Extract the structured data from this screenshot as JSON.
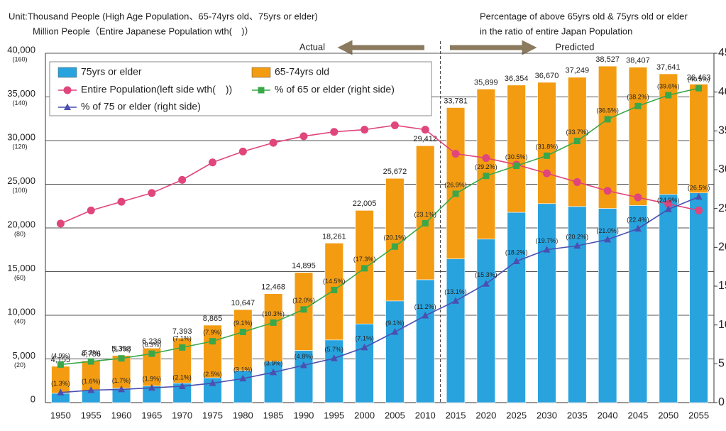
{
  "chart_data": {
    "type": "combo",
    "header_left": [
      "Unit:Thousand People (High Age Population、65-74yrs old、75yrs or elder)",
      "Million People（Entire Japanese Population wth(　)）"
    ],
    "header_right": [
      "Percentage of above 65yrs old & 75yrs old or elder",
      "in the ratio of entire Japan Population"
    ],
    "annotations": {
      "actual": "Actual",
      "predicted": "Predicted"
    },
    "categories": [
      "1950",
      "1955",
      "1960",
      "1965",
      "1970",
      "1975",
      "1980",
      "1985",
      "1990",
      "1995",
      "2000",
      "2005",
      "2010",
      "2015",
      "2020",
      "2025",
      "2030",
      "2035",
      "2040",
      "2045",
      "2050",
      "2055"
    ],
    "total_labels": [
      "4,155",
      "4,786",
      "5,398",
      "6,236",
      "7,393",
      "8,865",
      "10,647",
      "12,468",
      "14,895",
      "18,261",
      "22,005",
      "25,672",
      "29,412",
      "33,781",
      "35,899",
      "36,354",
      "36,670",
      "37,249",
      "38,527",
      "38,407",
      "37,641",
      "36,463"
    ],
    "series": [
      {
        "name": "75yrs or elder",
        "type": "bar",
        "color": "#29a3de",
        "values": [
          1069,
          1388,
          1637,
          1894,
          2237,
          2841,
          3660,
          4712,
          5973,
          7170,
          9008,
          11639,
          14072,
          16458,
          18719,
          21785,
          22784,
          22454,
          22230,
          22567,
          23846,
          24010
        ]
      },
      {
        "name": "65-74yrs old",
        "type": "bar",
        "color": "#f39c12",
        "values": [
          3086,
          3398,
          3761,
          4342,
          5156,
          6024,
          6987,
          7756,
          8922,
          11091,
          12997,
          14033,
          15340,
          17323,
          17180,
          14569,
          13886,
          14795,
          16297,
          15840,
          13795,
          12453
        ]
      },
      {
        "name": "Entire Population(left side wth(　))",
        "type": "line",
        "marker": "circle",
        "color": "#e0457b",
        "axis": "y3",
        "values": [
          82,
          88,
          92,
          96,
          102,
          110,
          115,
          119,
          122,
          124,
          125,
          127,
          125,
          114,
          112,
          109,
          105,
          101,
          97,
          94,
          91,
          88
        ]
      },
      {
        "name": "% of 65 or elder (right side)",
        "type": "line",
        "marker": "square",
        "color": "#3aa84a",
        "axis": "y2",
        "values": [
          4.9,
          5.3,
          5.7,
          6.3,
          7.1,
          7.9,
          9.1,
          10.3,
          12.0,
          14.5,
          17.3,
          20.1,
          23.1,
          26.9,
          29.2,
          30.5,
          31.8,
          33.7,
          36.5,
          38.2,
          39.6,
          40.5
        ],
        "value_labels": [
          "(4.9%)",
          "(5.3%)",
          "(5.7%)",
          "(6.3%)",
          "(7.1%)",
          "(7.9%)",
          "(9.1%)",
          "(10.3%)",
          "(12.0%)",
          "(14.5%)",
          "(17.3%)",
          "(20.1%)",
          "(23.1%)",
          "(26.9%)",
          "(29.2%)",
          "(30.5%)",
          "(31.8%)",
          "(33.7%)",
          "(36.5%)",
          "(38.2%)",
          "(39.6%)",
          "(40.5%)"
        ]
      },
      {
        "name": "% of 75 or elder (right side)",
        "type": "line",
        "marker": "triangle",
        "color": "#4a4fb0",
        "axis": "y2",
        "values": [
          1.3,
          1.6,
          1.7,
          1.9,
          2.1,
          2.5,
          3.1,
          3.9,
          4.8,
          5.7,
          7.1,
          9.1,
          11.2,
          13.1,
          15.3,
          18.2,
          19.7,
          20.2,
          21.0,
          22.4,
          24.9,
          26.5
        ],
        "value_labels": [
          "(1.3%)",
          "(1.6%)",
          "(1.7%)",
          "(1.9%)",
          "(2.1%)",
          "(2.5%)",
          "(3.1%)",
          "(3.9%)",
          "(4.8%)",
          "(5.7%)",
          "(7.1%)",
          "(9.1%)",
          "(11.2%)",
          "(13.1%)",
          "(15.3%)",
          "(18.2%)",
          "(19.7%)",
          "(20.2%)",
          "(21.0%)",
          "(22.4%)",
          "(24.9%)",
          "(26.5%)"
        ]
      }
    ],
    "ylim": [
      0,
      40000
    ],
    "yticks": [
      0,
      {
        "value": 5000,
        "label": "5,000"
      },
      {
        "value": 10000,
        "label": "10,000"
      },
      {
        "value": 15000,
        "label": "15,000"
      },
      {
        "value": 20000,
        "label": "20,000"
      },
      {
        "value": 25000,
        "label": "25,000"
      },
      {
        "value": 30000,
        "label": "30,000"
      },
      {
        "value": 35000,
        "label": "35,000"
      },
      {
        "value": 40000,
        "label": "40,000"
      }
    ],
    "y3lim": [
      0,
      160
    ],
    "y3ticks": [
      {
        "value": 20,
        "label": "(20)"
      },
      {
        "value": 40,
        "label": "(40)"
      },
      {
        "value": 60,
        "label": "(60)"
      },
      {
        "value": 80,
        "label": "(80)"
      },
      {
        "value": 100,
        "label": "(100)"
      },
      {
        "value": 120,
        "label": "(120)"
      },
      {
        "value": 140,
        "label": "(140)"
      },
      {
        "value": 160,
        "label": "(160)"
      }
    ],
    "y2lim": [
      0,
      45
    ],
    "y2ticks": [
      0,
      5,
      10,
      15,
      20,
      25,
      30,
      35,
      40,
      45
    ],
    "grid": true,
    "split_after": "2010"
  }
}
